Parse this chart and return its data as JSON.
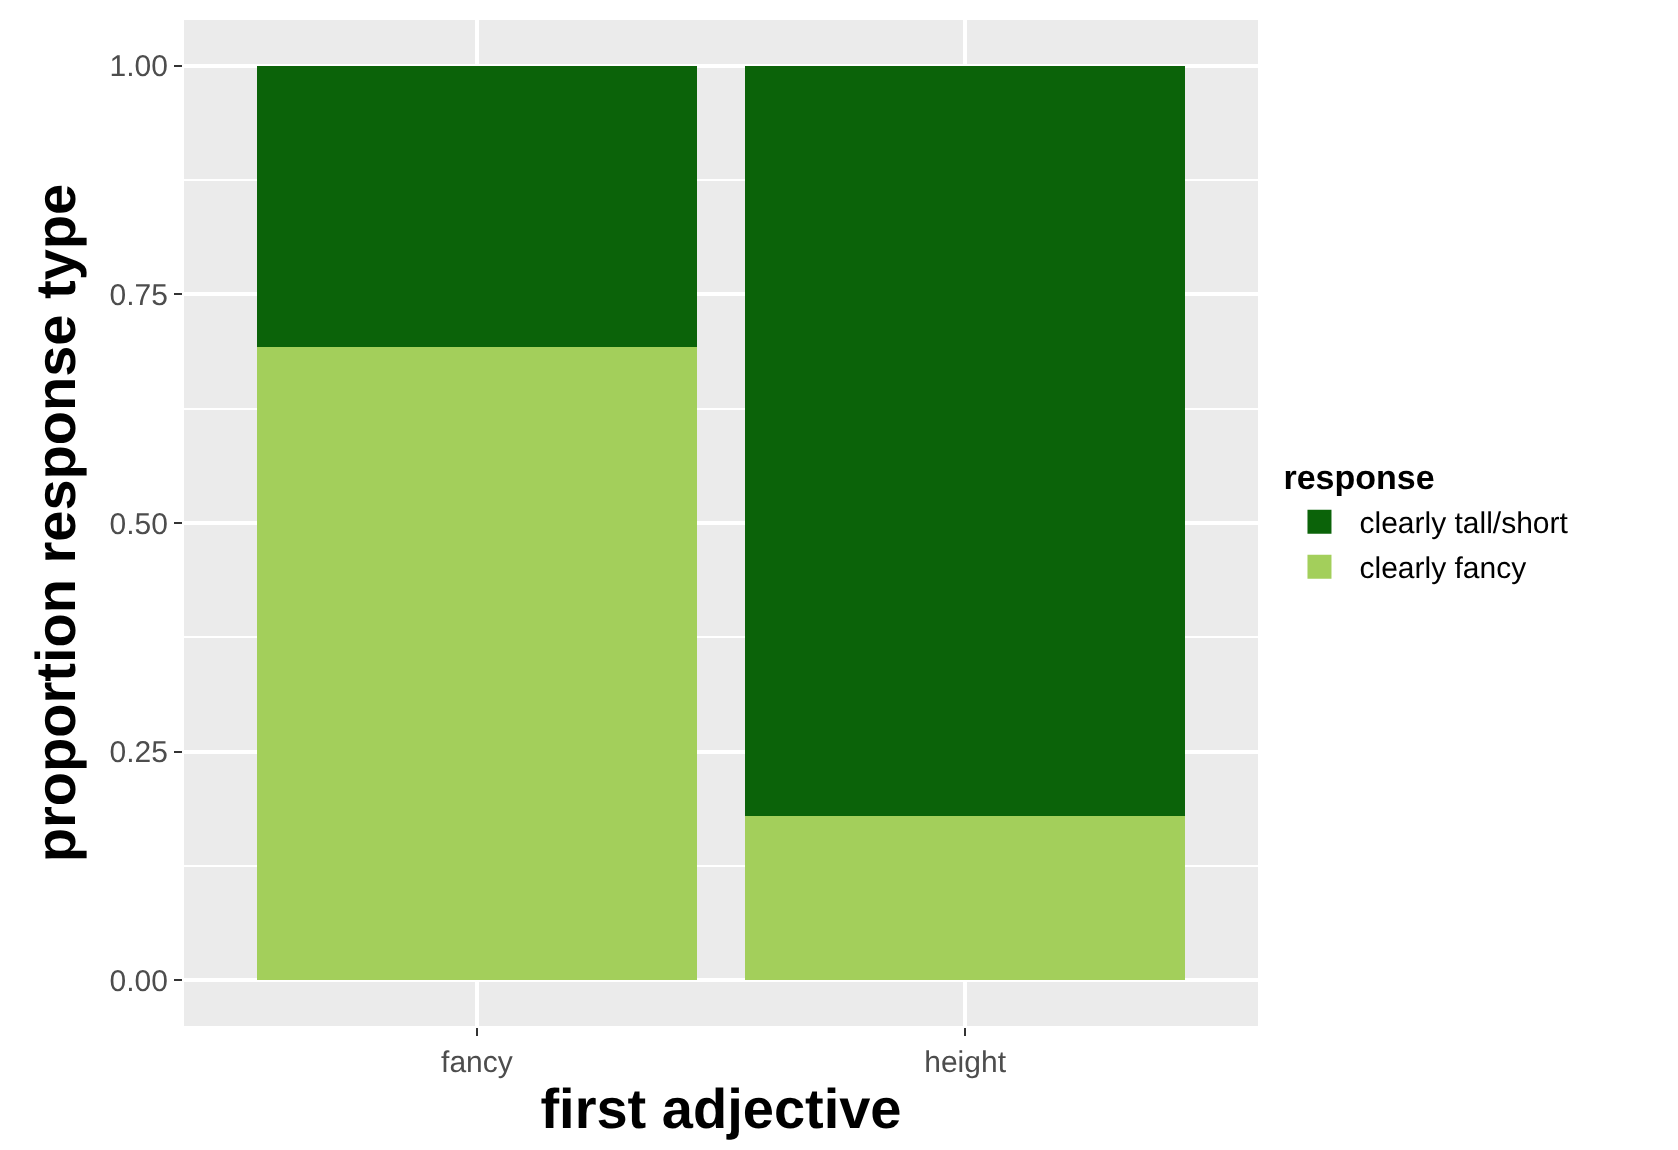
{
  "chart_data": {
    "type": "bar",
    "stacked": true,
    "xlabel": "first adjective",
    "ylabel": "proportion response type",
    "legend_title": "response",
    "categories": [
      "fancy",
      "height"
    ],
    "series": [
      {
        "name": "clearly fancy",
        "color": "#a3cf5b",
        "values": [
          0.693,
          0.18
        ]
      },
      {
        "name": "clearly tall/short",
        "color": "#0b6309",
        "values": [
          0.307,
          0.82
        ]
      }
    ],
    "ylim": [
      -0.05,
      1.05
    ],
    "yticks": [
      {
        "value": 0,
        "label": "0.00"
      },
      {
        "value": 0.25,
        "label": "0.25"
      },
      {
        "value": 0.5,
        "label": "0.50"
      },
      {
        "value": 0.75,
        "label": "0.75"
      },
      {
        "value": 1,
        "label": "1.00"
      }
    ],
    "grid": true,
    "legend": "right"
  }
}
